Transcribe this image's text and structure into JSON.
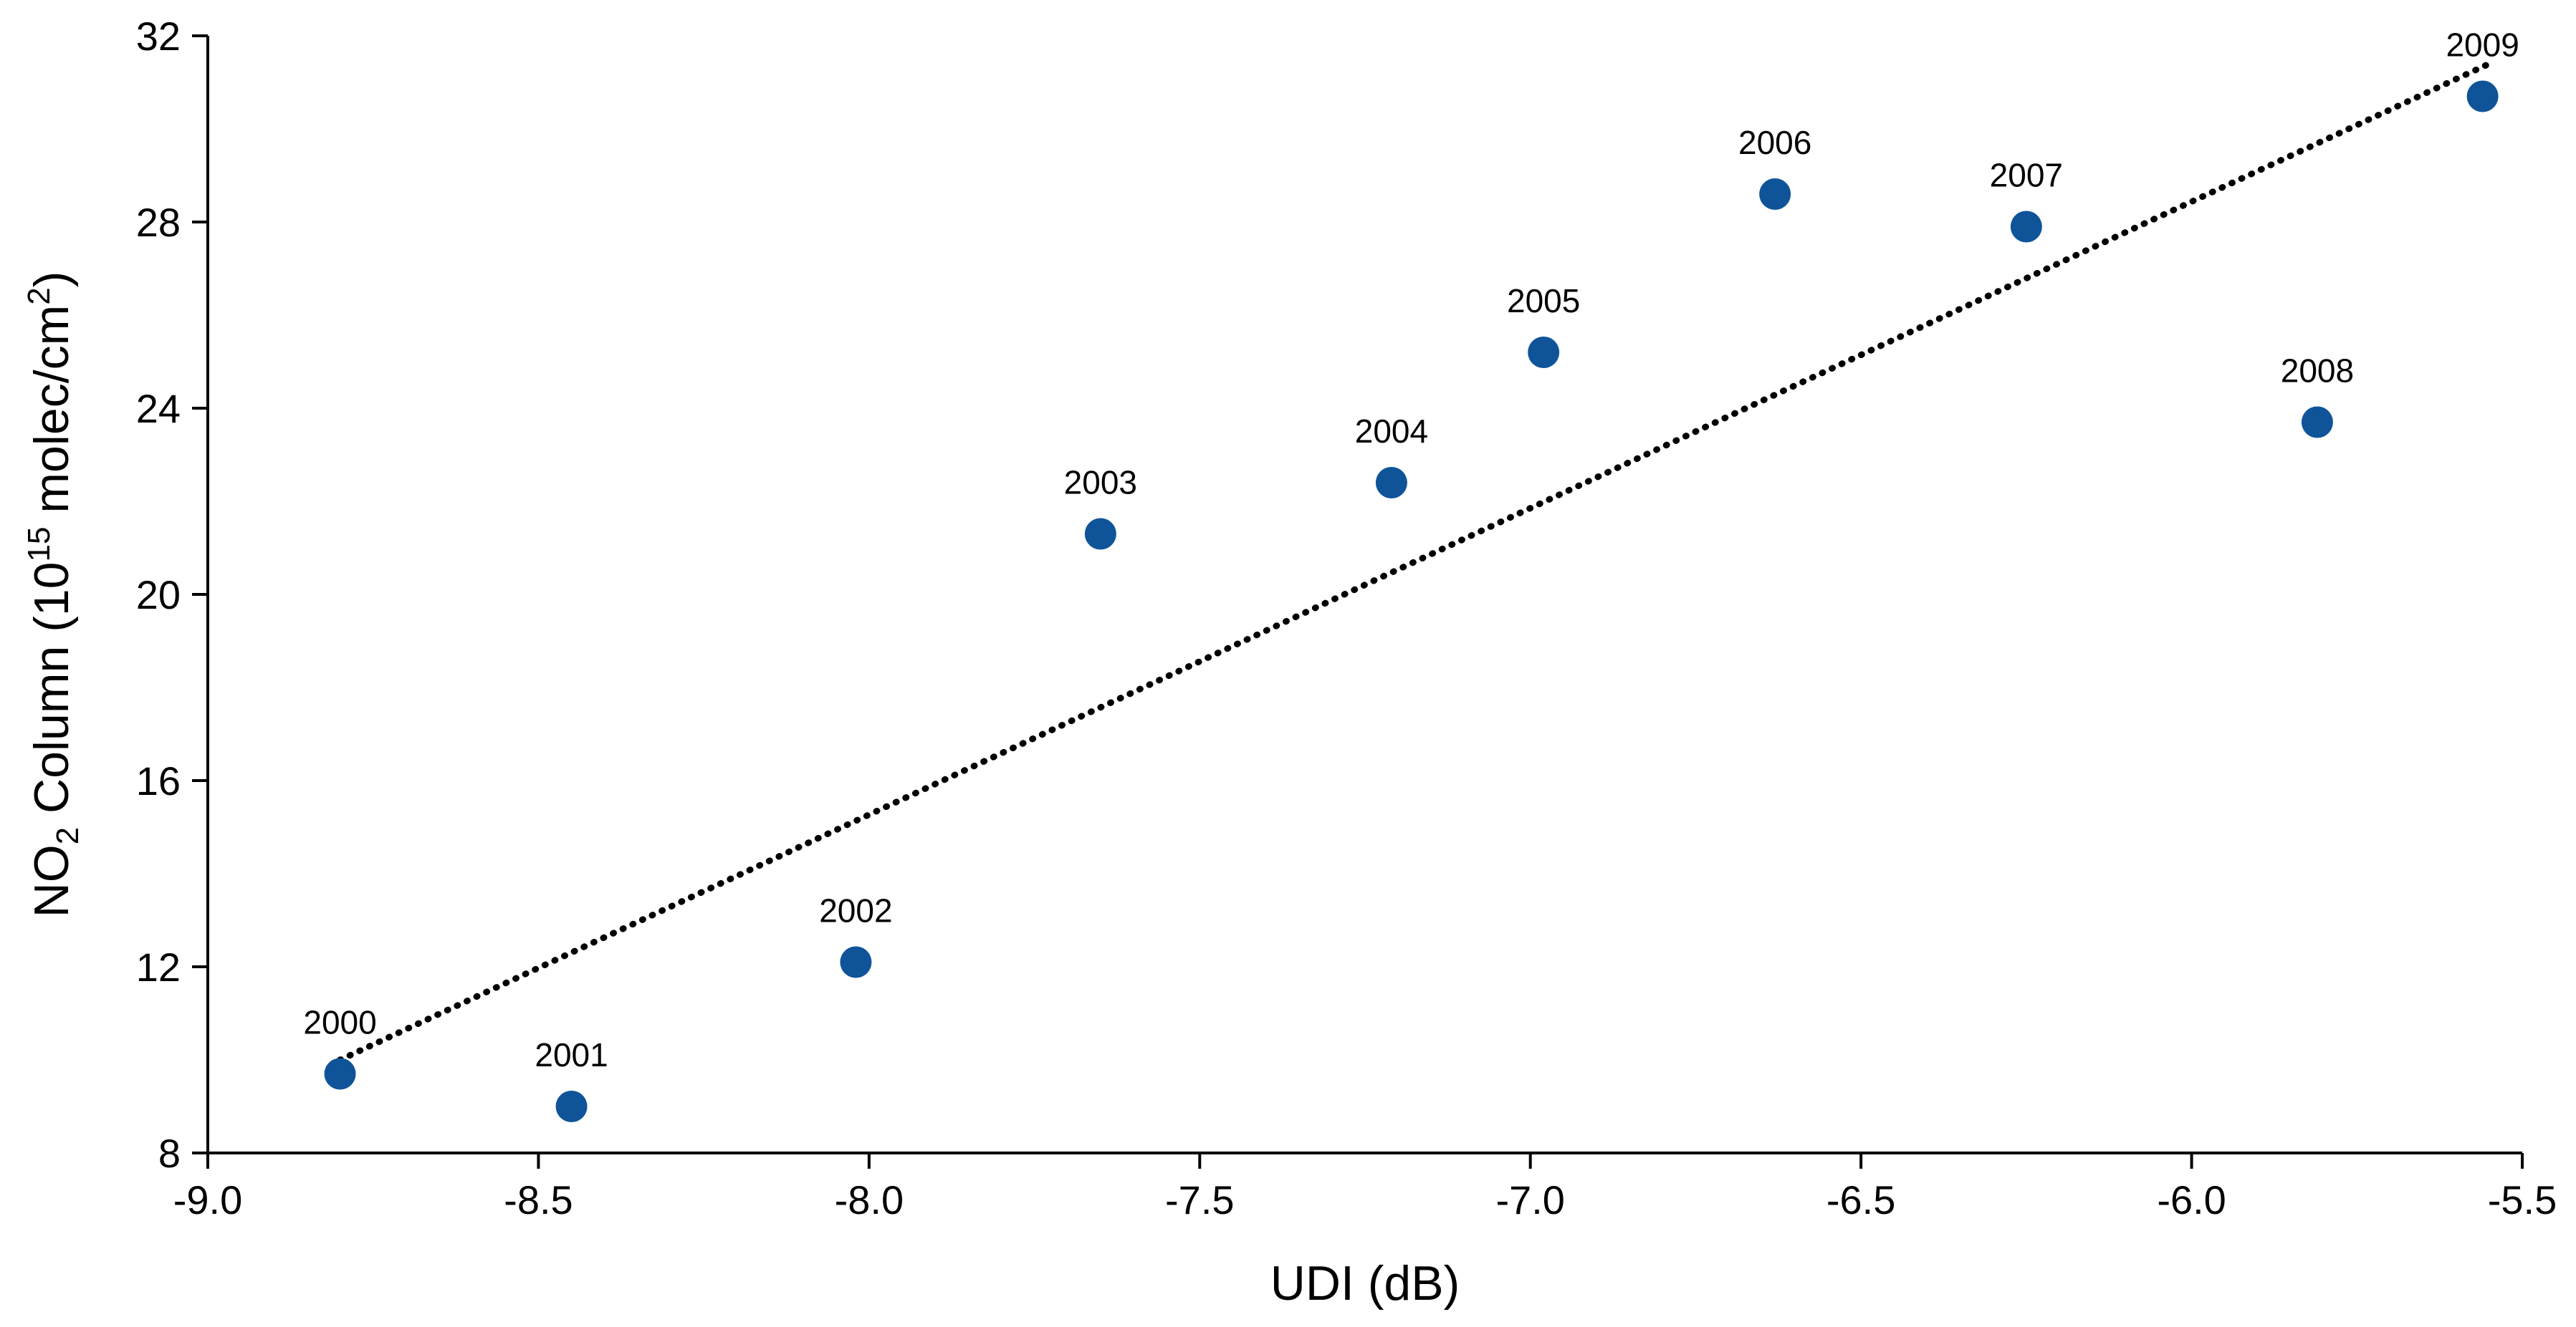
{
  "chart_data": {
    "type": "scatter",
    "title": "",
    "xlabel": "UDI (dB)",
    "ylabel_parts": {
      "base": "NO",
      "sub": "2",
      "mid": " Column (10",
      "sup": "15",
      "unit": " molec/cm",
      "unit_sup": "2",
      "close": ")"
    },
    "xlim": [
      -9.0,
      -5.5
    ],
    "ylim": [
      8,
      32
    ],
    "x_ticks": [
      -9.0,
      -8.5,
      -8.0,
      -7.5,
      -7.0,
      -6.5,
      -6.0,
      -5.5
    ],
    "x_tick_labels": [
      "-9.0",
      "-8.5",
      "-8.0",
      "-7.5",
      "-7.0",
      "-6.5",
      "-6.0",
      "-5.5"
    ],
    "y_ticks": [
      8,
      12,
      16,
      20,
      24,
      28,
      32
    ],
    "y_tick_labels": [
      "8",
      "12",
      "16",
      "20",
      "24",
      "28",
      "32"
    ],
    "grid": false,
    "legend": "none",
    "marker_color": "#0F5499",
    "trendline": {
      "style": "dotted",
      "color": "#000000",
      "x": [
        -8.8,
        -5.55
      ],
      "y": [
        10.0,
        31.4
      ]
    },
    "points": [
      {
        "label": "2000",
        "x": -8.8,
        "y": 9.7
      },
      {
        "label": "2001",
        "x": -8.45,
        "y": 9.0
      },
      {
        "label": "2002",
        "x": -8.02,
        "y": 12.1
      },
      {
        "label": "2003",
        "x": -7.65,
        "y": 21.3
      },
      {
        "label": "2004",
        "x": -7.21,
        "y": 22.4
      },
      {
        "label": "2005",
        "x": -6.98,
        "y": 25.2
      },
      {
        "label": "2006",
        "x": -6.63,
        "y": 28.6
      },
      {
        "label": "2007",
        "x": -6.25,
        "y": 27.9
      },
      {
        "label": "2008",
        "x": -5.81,
        "y": 23.7
      },
      {
        "label": "2009",
        "x": -5.56,
        "y": 30.7
      }
    ]
  }
}
